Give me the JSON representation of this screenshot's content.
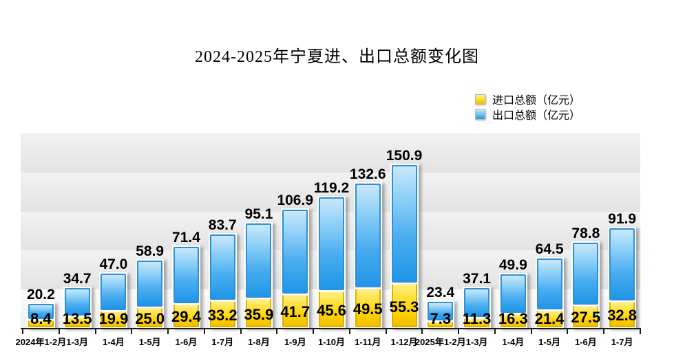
{
  "title": "2024-2025年宁夏进、出口总额变化图",
  "legend": {
    "items": [
      {
        "label": "进口总额（亿元）",
        "series": "import",
        "color": "#FFD400"
      },
      {
        "label": "出口总额（亿元）",
        "series": "export",
        "color": "#249AE8"
      }
    ]
  },
  "colors": {
    "import_fill": "#FFD400",
    "import_border": "#DFAE00",
    "export_fill": "#249AE8",
    "export_border": "#2E8FD5",
    "label_text": "#000000",
    "band_gray": "#E3E3E3",
    "band_light": "#F7F7F7"
  },
  "chart_data": {
    "type": "bar",
    "stacked": true,
    "title": "2024-2025年宁夏进、出口总额变化图",
    "categories": [
      "2024年1-2月",
      "1-3月",
      "1-4月",
      "1-5月",
      "1-6月",
      "1-7月",
      "1-8月",
      "1-9月",
      "1-10月",
      "1-11月",
      "1-12月",
      "2025年1-2月",
      "1-3月",
      "1-4月",
      "1-5月",
      "1-6月",
      "1-7月"
    ],
    "series": [
      {
        "name": "进口总额（亿元）",
        "color": "#FFD400",
        "values": [
          8.4,
          13.5,
          19.9,
          25.0,
          29.4,
          33.2,
          35.9,
          41.7,
          45.6,
          49.5,
          55.3,
          7.3,
          11.3,
          16.3,
          21.4,
          27.5,
          32.8
        ]
      },
      {
        "name": "出口总额（亿元）",
        "color": "#249AE8",
        "values": [
          20.2,
          34.7,
          47.0,
          58.9,
          71.4,
          83.7,
          95.1,
          106.9,
          119.2,
          132.6,
          150.9,
          23.4,
          37.1,
          49.9,
          64.5,
          78.8,
          91.9
        ]
      }
    ],
    "xlabel": "",
    "ylabel": "",
    "ylim": [
      0,
      250
    ],
    "gridline_interval": 50,
    "grid": "horizontal-bands",
    "y_axis_labels_visible": false,
    "data_labels": "all-points-one-decimal",
    "legend_position": "top-right"
  }
}
